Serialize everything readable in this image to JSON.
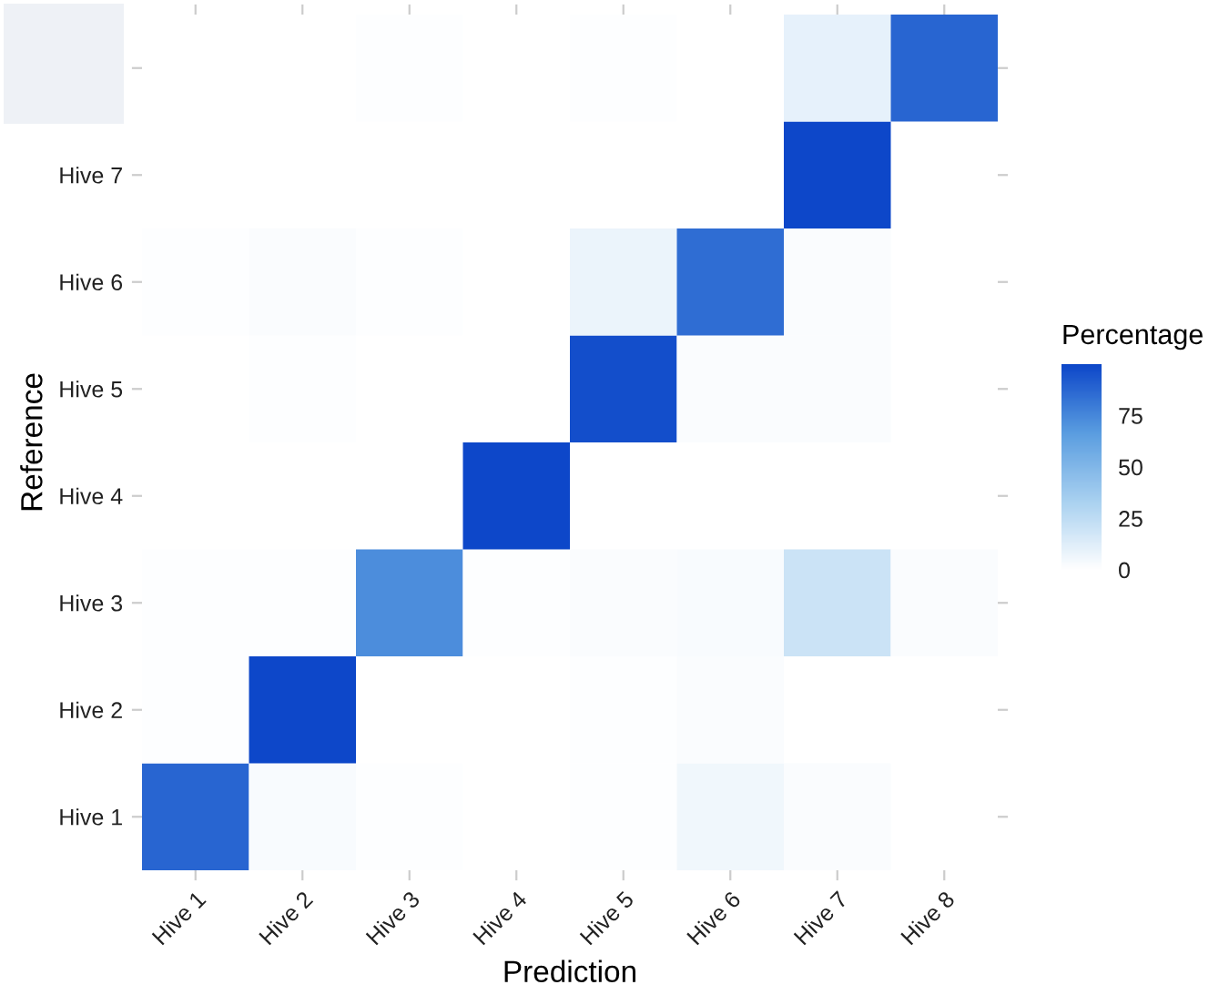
{
  "chart_data": {
    "type": "heatmap",
    "xlabel": "Prediction",
    "ylabel": "Reference",
    "clabel": "Percentage",
    "categories": [
      "Hive 1",
      "Hive 2",
      "Hive 3",
      "Hive 4",
      "Hive 5",
      "Hive 6",
      "Hive 7",
      "Hive 8"
    ],
    "y_categories": [
      null,
      "Hive 7",
      "Hive 6",
      "Hive 5",
      "Hive 4",
      "Hive 3",
      "Hive 2",
      "Hive 1"
    ],
    "cells": [
      [
        null,
        null,
        1,
        null,
        1,
        null,
        10,
        88
      ],
      [
        null,
        null,
        null,
        null,
        null,
        null,
        100,
        null
      ],
      [
        1,
        2,
        1,
        null,
        8,
        85,
        2,
        null
      ],
      [
        null,
        1,
        null,
        null,
        97,
        2,
        2,
        null
      ],
      [
        null,
        null,
        null,
        100,
        null,
        null,
        null,
        null
      ],
      [
        1,
        1,
        73,
        1,
        2,
        3,
        20,
        2
      ],
      [
        1,
        100,
        null,
        null,
        1,
        2,
        null,
        null
      ],
      [
        88,
        3,
        1,
        null,
        1,
        6,
        2,
        null
      ]
    ],
    "clim": [
      0,
      100
    ],
    "cticks": [
      0,
      25,
      50,
      75
    ]
  }
}
